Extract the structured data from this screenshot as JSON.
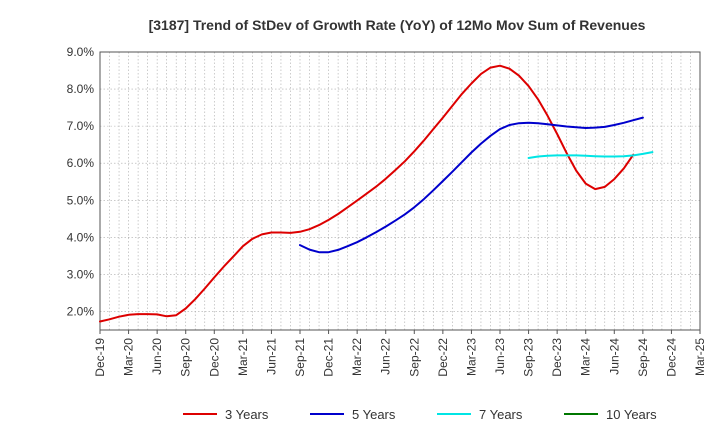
{
  "chart_data": {
    "type": "line",
    "title": "[3187]  Trend of StDev of Growth Rate (YoY) of 12Mo Mov Sum of Revenues",
    "xlabel": "",
    "ylabel": "",
    "ylim": [
      1.5,
      9.0
    ],
    "y_ticks": [
      2.0,
      3.0,
      4.0,
      5.0,
      6.0,
      7.0,
      8.0,
      9.0
    ],
    "y_tick_labels": [
      "2.0%",
      "3.0%",
      "4.0%",
      "5.0%",
      "6.0%",
      "7.0%",
      "8.0%",
      "9.0%"
    ],
    "x_tick_labels": [
      "Dec-19",
      "Mar-20",
      "Jun-20",
      "Sep-20",
      "Dec-20",
      "Mar-21",
      "Jun-21",
      "Sep-21",
      "Dec-21",
      "Mar-22",
      "Jun-22",
      "Sep-22",
      "Dec-22",
      "Mar-23",
      "Jun-23",
      "Sep-23",
      "Dec-23",
      "Mar-24",
      "Jun-24",
      "Sep-24",
      "Dec-24",
      "Mar-25"
    ],
    "grid": true,
    "legend_position": "bottom",
    "series": [
      {
        "name": "3 Years",
        "color": "#dd0000",
        "start_month_index": 0,
        "values": [
          1.73,
          1.79,
          1.86,
          1.91,
          1.93,
          1.93,
          1.92,
          1.87,
          1.9,
          2.08,
          2.33,
          2.62,
          2.92,
          3.21,
          3.48,
          3.76,
          3.96,
          4.08,
          4.13,
          4.13,
          4.12,
          4.15,
          4.22,
          4.33,
          4.47,
          4.63,
          4.81,
          4.99,
          5.18,
          5.37,
          5.58,
          5.81,
          6.05,
          6.32,
          6.61,
          6.92,
          7.23,
          7.55,
          7.87,
          8.15,
          8.41,
          8.58,
          8.63,
          8.55,
          8.36,
          8.08,
          7.72,
          7.28,
          6.79,
          6.27,
          5.8,
          5.45,
          5.3,
          5.36,
          5.57,
          5.86,
          6.23
        ]
      },
      {
        "name": "5 Years",
        "color": "#0000cc",
        "start_month_index": 21,
        "values": [
          3.79,
          3.67,
          3.6,
          3.6,
          3.66,
          3.76,
          3.87,
          4.0,
          4.14,
          4.29,
          4.45,
          4.62,
          4.81,
          5.03,
          5.27,
          5.52,
          5.77,
          6.03,
          6.29,
          6.53,
          6.74,
          6.92,
          7.03,
          7.08,
          7.09,
          7.08,
          7.05,
          7.02,
          6.99,
          6.97,
          6.95,
          6.96,
          6.98,
          7.03,
          7.09,
          7.16,
          7.23
        ]
      },
      {
        "name": "7 Years",
        "color": "#00e5e5",
        "start_month_index": 45,
        "values": [
          6.14,
          6.18,
          6.2,
          6.21,
          6.21,
          6.21,
          6.2,
          6.19,
          6.18,
          6.18,
          6.19,
          6.21,
          6.25,
          6.3
        ]
      },
      {
        "name": "10 Years",
        "color": "#007700",
        "start_month_index": 0,
        "values": []
      }
    ]
  }
}
